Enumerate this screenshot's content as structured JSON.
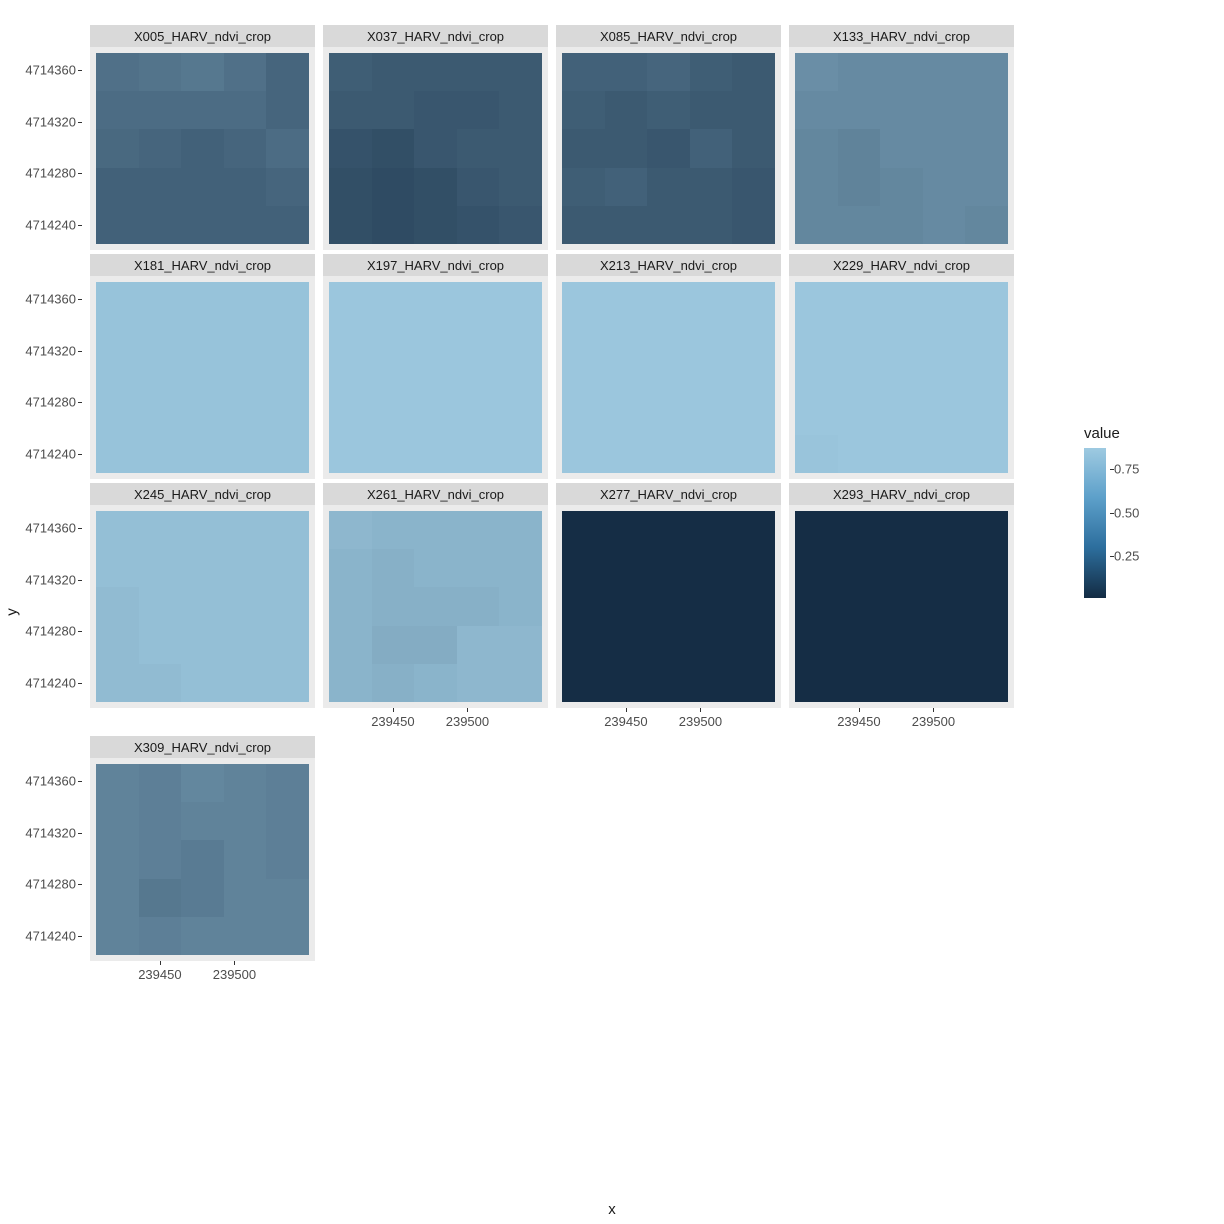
{
  "axis_label_x": "x",
  "axis_label_y": "y",
  "legend_title": "value",
  "legend_ticks": [
    {
      "label": "0.75",
      "pos_pct": 14
    },
    {
      "label": "0.50",
      "pos_pct": 43
    },
    {
      "label": "0.25",
      "pos_pct": 72
    }
  ],
  "color_low": "#132b43",
  "color_high": "#9ecae1",
  "background_color": "#ffffff",
  "panel_bg": "#ebebeb",
  "strip_bg": "#d9d9d9",
  "y_ticks": [
    {
      "label": "4714360",
      "pos_pct": 9
    },
    {
      "label": "4714320",
      "pos_pct": 36
    },
    {
      "label": "4714280",
      "pos_pct": 63
    },
    {
      "label": "4714240",
      "pos_pct": 90
    }
  ],
  "x_ticks": [
    {
      "label": "239450",
      "pos_pct": 30
    },
    {
      "label": "239500",
      "pos_pct": 65
    }
  ],
  "grid_rows": 5,
  "grid_cols": 5,
  "facets": [
    {
      "title": "X005_HARV_ndvi_crop",
      "values": [
        0.42,
        0.44,
        0.46,
        0.42,
        0.36,
        0.4,
        0.4,
        0.4,
        0.4,
        0.36,
        0.38,
        0.36,
        0.34,
        0.36,
        0.4,
        0.34,
        0.34,
        0.34,
        0.34,
        0.36,
        0.34,
        0.34,
        0.34,
        0.34,
        0.34
      ]
    },
    {
      "title": "X037_HARV_ndvi_crop",
      "values": [
        0.32,
        0.3,
        0.3,
        0.3,
        0.3,
        0.3,
        0.3,
        0.28,
        0.28,
        0.3,
        0.26,
        0.24,
        0.28,
        0.3,
        0.3,
        0.24,
        0.22,
        0.24,
        0.28,
        0.3,
        0.24,
        0.22,
        0.24,
        0.26,
        0.28
      ]
    },
    {
      "title": "X085_HARV_ndvi_crop",
      "values": [
        0.34,
        0.34,
        0.36,
        0.32,
        0.3,
        0.32,
        0.3,
        0.32,
        0.3,
        0.3,
        0.3,
        0.3,
        0.28,
        0.34,
        0.3,
        0.32,
        0.34,
        0.3,
        0.3,
        0.28,
        0.3,
        0.3,
        0.3,
        0.3,
        0.28
      ]
    },
    {
      "title": "X133_HARV_ndvi_crop",
      "values": [
        0.58,
        0.56,
        0.56,
        0.56,
        0.56,
        0.56,
        0.56,
        0.56,
        0.56,
        0.56,
        0.54,
        0.52,
        0.56,
        0.56,
        0.56,
        0.54,
        0.52,
        0.54,
        0.56,
        0.56,
        0.54,
        0.54,
        0.54,
        0.56,
        0.54
      ]
    },
    {
      "title": "X181_HARV_ndvi_crop",
      "values": [
        0.86,
        0.86,
        0.86,
        0.86,
        0.86,
        0.86,
        0.86,
        0.86,
        0.86,
        0.86,
        0.86,
        0.86,
        0.86,
        0.86,
        0.86,
        0.86,
        0.86,
        0.86,
        0.86,
        0.86,
        0.86,
        0.86,
        0.86,
        0.86,
        0.86
      ]
    },
    {
      "title": "X197_HARV_ndvi_crop",
      "values": [
        0.88,
        0.88,
        0.88,
        0.88,
        0.88,
        0.88,
        0.88,
        0.88,
        0.88,
        0.88,
        0.88,
        0.88,
        0.88,
        0.88,
        0.88,
        0.88,
        0.88,
        0.88,
        0.88,
        0.88,
        0.88,
        0.88,
        0.88,
        0.88,
        0.88
      ]
    },
    {
      "title": "X213_HARV_ndvi_crop",
      "values": [
        0.88,
        0.88,
        0.88,
        0.88,
        0.88,
        0.88,
        0.88,
        0.88,
        0.88,
        0.88,
        0.88,
        0.88,
        0.88,
        0.88,
        0.88,
        0.88,
        0.88,
        0.88,
        0.88,
        0.88,
        0.88,
        0.88,
        0.88,
        0.88,
        0.88
      ]
    },
    {
      "title": "X229_HARV_ndvi_crop",
      "values": [
        0.88,
        0.88,
        0.88,
        0.88,
        0.88,
        0.88,
        0.88,
        0.88,
        0.88,
        0.88,
        0.88,
        0.88,
        0.88,
        0.88,
        0.88,
        0.88,
        0.88,
        0.88,
        0.88,
        0.88,
        0.87,
        0.88,
        0.88,
        0.88,
        0.88
      ]
    },
    {
      "title": "X245_HARV_ndvi_crop",
      "values": [
        0.84,
        0.84,
        0.84,
        0.84,
        0.84,
        0.84,
        0.84,
        0.84,
        0.84,
        0.84,
        0.82,
        0.84,
        0.84,
        0.84,
        0.84,
        0.82,
        0.84,
        0.84,
        0.84,
        0.84,
        0.82,
        0.82,
        0.84,
        0.84,
        0.84
      ]
    },
    {
      "title": "X261_HARV_ndvi_crop",
      "values": [
        0.8,
        0.78,
        0.78,
        0.78,
        0.78,
        0.78,
        0.76,
        0.78,
        0.78,
        0.78,
        0.78,
        0.76,
        0.76,
        0.76,
        0.78,
        0.78,
        0.74,
        0.74,
        0.8,
        0.8,
        0.78,
        0.76,
        0.78,
        0.8,
        0.8
      ]
    },
    {
      "title": "X277_HARV_ndvi_crop",
      "values": [
        0.06,
        0.06,
        0.06,
        0.06,
        0.06,
        0.06,
        0.06,
        0.06,
        0.06,
        0.06,
        0.06,
        0.06,
        0.06,
        0.06,
        0.06,
        0.06,
        0.06,
        0.06,
        0.06,
        0.06,
        0.06,
        0.06,
        0.06,
        0.06,
        0.06
      ]
    },
    {
      "title": "X293_HARV_ndvi_crop",
      "values": [
        0.06,
        0.06,
        0.06,
        0.06,
        0.06,
        0.06,
        0.06,
        0.06,
        0.06,
        0.06,
        0.06,
        0.06,
        0.06,
        0.06,
        0.06,
        0.06,
        0.06,
        0.06,
        0.06,
        0.06,
        0.06,
        0.06,
        0.06,
        0.06,
        0.06
      ]
    },
    {
      "title": "X309_HARV_ndvi_crop",
      "values": [
        0.52,
        0.5,
        0.54,
        0.52,
        0.5,
        0.52,
        0.5,
        0.52,
        0.52,
        0.5,
        0.52,
        0.5,
        0.48,
        0.52,
        0.5,
        0.52,
        0.46,
        0.48,
        0.52,
        0.52,
        0.52,
        0.5,
        0.52,
        0.52,
        0.52
      ]
    }
  ],
  "value_domain": [
    0.05,
    0.9
  ]
}
